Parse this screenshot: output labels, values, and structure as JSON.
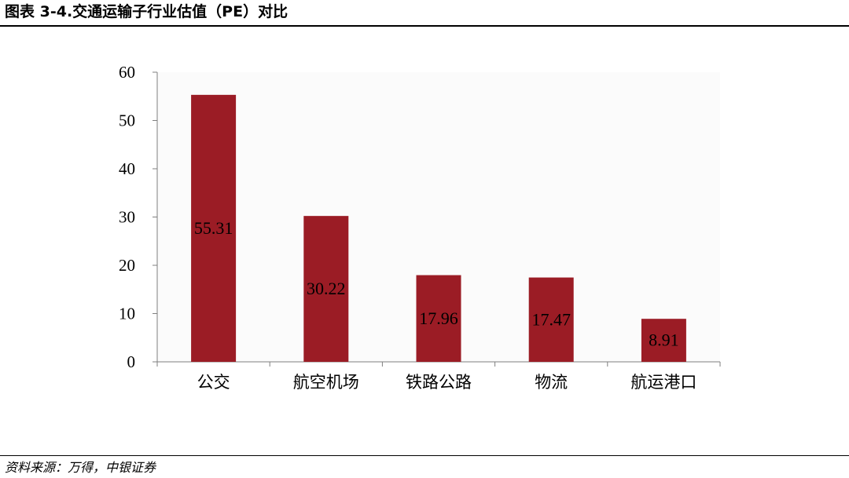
{
  "header": {
    "title": "图表 3-4.交通运输子行业估值（PE）对比"
  },
  "footer": {
    "source": "资料来源：万得，中银证券"
  },
  "chart_data": {
    "type": "bar",
    "categories": [
      "公交",
      "航空机场",
      "铁路公路",
      "物流",
      "航运港口"
    ],
    "values": [
      55.31,
      30.22,
      17.96,
      17.47,
      8.91
    ],
    "value_labels": [
      "55.31",
      "30.22",
      "17.96",
      "17.47",
      "8.91"
    ],
    "yticks": [
      "0",
      "10",
      "20",
      "30",
      "40",
      "50",
      "60"
    ],
    "ylim": [
      0,
      60
    ],
    "grid": false,
    "legend": "none",
    "bar_color": "#9b1c25",
    "plot_background": "#fbfbfb"
  }
}
